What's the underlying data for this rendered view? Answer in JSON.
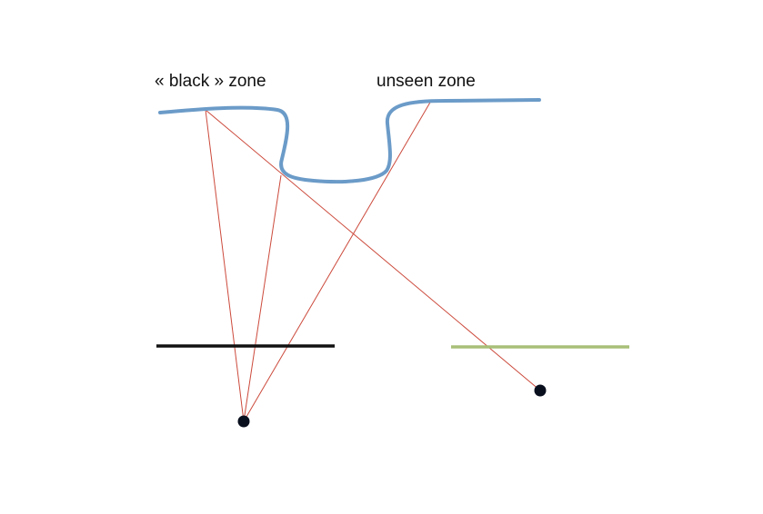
{
  "labels": {
    "black_zone": "« black » zone",
    "unseen_zone": "unseen  zone"
  },
  "colors": {
    "background": "#ffffff",
    "surface_curve": "#6b9bc8",
    "ray": "#cc4a3c",
    "left_screen": "#111111",
    "right_screen": "#a8bf78",
    "camera_point": "#0a0f1e",
    "text": "#111111"
  },
  "elements": {
    "surface": "wavy surface curve with a trench",
    "left_camera": "camera point under black screen",
    "right_camera": "camera point under green screen"
  }
}
